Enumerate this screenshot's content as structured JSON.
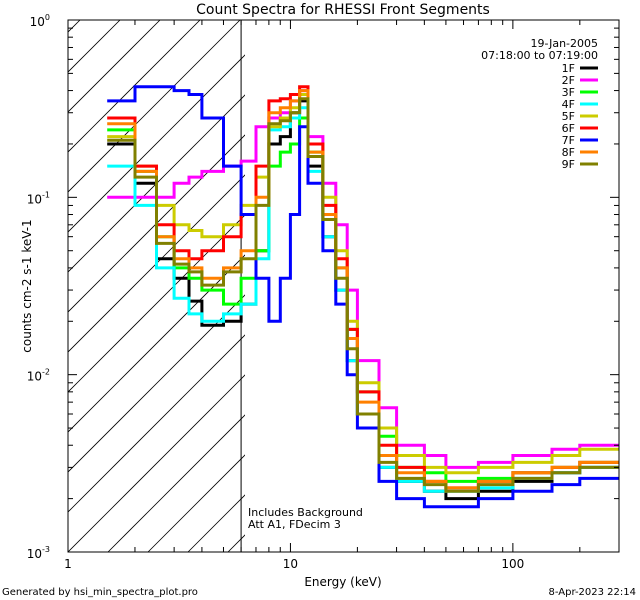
{
  "chart_data": {
    "type": "line",
    "title": "Count Spectra for RHESSI Front Segments",
    "xlabel": "Energy (keV)",
    "ylabel": "counts cm-2 s-1 keV-1",
    "xscale": "log",
    "yscale": "log",
    "xlim": [
      1,
      300
    ],
    "ylim": [
      0.001,
      1
    ],
    "x_tick_labels": [
      "1",
      "10",
      "100"
    ],
    "y_tick_labels": [
      {
        "base": "10",
        "exp": "0",
        "value": 1
      },
      {
        "base": "10",
        "exp": "-1",
        "value": 0.1
      },
      {
        "base": "10",
        "exp": "-2",
        "value": 0.01
      },
      {
        "base": "10",
        "exp": "-3",
        "value": 0.001
      }
    ],
    "date": "19-Jan-2005",
    "time_range": "07:18:00 to 07:19:00",
    "annotations": [
      "Includes Background",
      "Att A1, FDecim 3"
    ],
    "shaded_region": {
      "x_from": 1,
      "x_to": 6
    },
    "footer_left": "Generated by hsi_min_spectra_plot.pro",
    "footer_right": "8-Apr-2023 22:14",
    "energy_edges": [
      1.5,
      2,
      2.5,
      3,
      3.5,
      4,
      5,
      6,
      7,
      8,
      9,
      10,
      11,
      12,
      14,
      16,
      18,
      20,
      25,
      30,
      40,
      50,
      70,
      100,
      150,
      200,
      300
    ],
    "series": [
      {
        "name": "1F",
        "color": "#000000",
        "values": [
          0.2,
          0.12,
          0.045,
          0.035,
          0.026,
          0.019,
          0.02,
          0.025,
          0.05,
          0.2,
          0.22,
          0.3,
          0.35,
          0.15,
          0.06,
          0.03,
          0.012,
          0.006,
          0.003,
          0.0025,
          0.0022,
          0.002,
          0.0022,
          0.0025,
          0.0028,
          0.003
        ]
      },
      {
        "name": "2F",
        "color": "#ff00ff",
        "values": [
          0.1,
          0.1,
          0.1,
          0.12,
          0.13,
          0.14,
          0.15,
          0.16,
          0.25,
          0.28,
          0.3,
          0.35,
          0.4,
          0.22,
          0.12,
          0.07,
          0.03,
          0.012,
          0.0065,
          0.004,
          0.0035,
          0.003,
          0.0032,
          0.0035,
          0.0038,
          0.004
        ]
      },
      {
        "name": "3F",
        "color": "#00ff00",
        "values": [
          0.24,
          0.14,
          0.06,
          0.04,
          0.035,
          0.03,
          0.025,
          0.035,
          0.05,
          0.15,
          0.18,
          0.2,
          0.28,
          0.18,
          0.08,
          0.04,
          0.018,
          0.008,
          0.0045,
          0.003,
          0.0028,
          0.0025,
          0.0026,
          0.0028,
          0.003,
          0.0032
        ]
      },
      {
        "name": "4F",
        "color": "#00ffff",
        "values": [
          0.15,
          0.09,
          0.04,
          0.027,
          0.022,
          0.02,
          0.022,
          0.025,
          0.045,
          0.24,
          0.25,
          0.28,
          0.32,
          0.14,
          0.06,
          0.03,
          0.012,
          0.006,
          0.003,
          0.0025,
          0.0022,
          0.0022,
          0.0023,
          0.0026,
          0.0028,
          0.003
        ]
      },
      {
        "name": "5F",
        "color": "#cccc00",
        "values": [
          0.22,
          0.15,
          0.09,
          0.07,
          0.065,
          0.06,
          0.07,
          0.09,
          0.13,
          0.25,
          0.28,
          0.32,
          0.38,
          0.2,
          0.1,
          0.05,
          0.02,
          0.009,
          0.005,
          0.0035,
          0.003,
          0.0028,
          0.003,
          0.0032,
          0.0035,
          0.0038
        ]
      },
      {
        "name": "6F",
        "color": "#ff0000",
        "values": [
          0.28,
          0.15,
          0.07,
          0.05,
          0.045,
          0.05,
          0.06,
          0.08,
          0.15,
          0.35,
          0.36,
          0.38,
          0.42,
          0.2,
          0.09,
          0.045,
          0.018,
          0.008,
          0.004,
          0.003,
          0.0025,
          0.0023,
          0.0025,
          0.0028,
          0.003,
          0.0032
        ]
      },
      {
        "name": "7F",
        "color": "#0000ff",
        "values": [
          0.35,
          0.42,
          0.42,
          0.4,
          0.38,
          0.28,
          0.15,
          0.08,
          0.035,
          0.02,
          0.035,
          0.08,
          0.25,
          0.12,
          0.05,
          0.025,
          0.01,
          0.005,
          0.0025,
          0.002,
          0.0018,
          0.0018,
          0.002,
          0.0022,
          0.0024,
          0.0026
        ]
      },
      {
        "name": "8F",
        "color": "#ff8000",
        "values": [
          0.26,
          0.14,
          0.06,
          0.045,
          0.04,
          0.035,
          0.04,
          0.05,
          0.1,
          0.3,
          0.32,
          0.35,
          0.4,
          0.18,
          0.08,
          0.04,
          0.016,
          0.007,
          0.0035,
          0.0028,
          0.0025,
          0.0023,
          0.0025,
          0.0028,
          0.003,
          0.0032
        ]
      },
      {
        "name": "9F",
        "color": "#808000",
        "values": [
          0.21,
          0.13,
          0.055,
          0.042,
          0.038,
          0.032,
          0.038,
          0.045,
          0.09,
          0.26,
          0.27,
          0.3,
          0.36,
          0.17,
          0.075,
          0.035,
          0.014,
          0.006,
          0.0032,
          0.0026,
          0.0024,
          0.0022,
          0.0024,
          0.0026,
          0.0028,
          0.003
        ]
      }
    ]
  }
}
